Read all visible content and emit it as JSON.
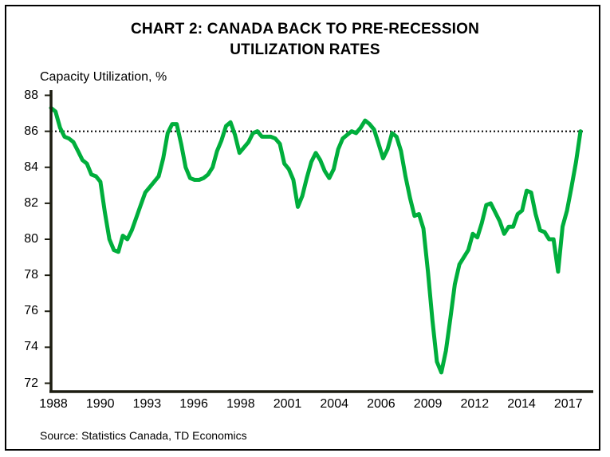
{
  "header": {
    "title_line1": "CHART 2: CANADA BACK TO PRE-RECESSION",
    "title_line2": "UTILIZATION RATES"
  },
  "chart_data": {
    "type": "line",
    "title": "CHART 2: CANADA BACK TO PRE-RECESSION UTILIZATION RATES",
    "ylabel": "Capacity Utilization, %",
    "xlabel": "",
    "source": "Source: Statistics Canada, TD Economics",
    "ylim": [
      72,
      88
    ],
    "yticks": [
      88,
      86,
      84,
      82,
      80,
      78,
      76,
      74,
      72
    ],
    "xtick_labels": [
      "1988",
      "1990",
      "1993",
      "1996",
      "1998",
      "2001",
      "2004",
      "2006",
      "2009",
      "2012",
      "2014",
      "2017"
    ],
    "grid": false,
    "legend": "none",
    "reference_line": {
      "value": 86,
      "style": "dotted",
      "color": "#000000"
    },
    "series": [
      {
        "name": "Capacity Utilization (%)",
        "frequency": "quarterly",
        "start": "1988Q1",
        "end": "2017Q3",
        "color": "#00AE3C",
        "values": [
          87.3,
          87.1,
          86.2,
          85.7,
          85.6,
          85.4,
          84.9,
          84.4,
          84.2,
          83.6,
          83.5,
          83.2,
          81.5,
          80.0,
          79.4,
          79.3,
          80.2,
          80.0,
          80.5,
          81.2,
          81.9,
          82.6,
          82.9,
          83.2,
          83.5,
          84.5,
          85.9,
          86.4,
          86.4,
          85.3,
          84.0,
          83.4,
          83.3,
          83.3,
          83.4,
          83.6,
          84.0,
          84.9,
          85.5,
          86.3,
          86.5,
          85.8,
          84.8,
          85.1,
          85.4,
          85.9,
          86.0,
          85.7,
          85.7,
          85.7,
          85.6,
          85.3,
          84.2,
          83.9,
          83.3,
          81.8,
          82.4,
          83.4,
          84.3,
          84.8,
          84.4,
          83.8,
          83.4,
          83.9,
          85.0,
          85.6,
          85.8,
          86.0,
          85.9,
          86.2,
          86.6,
          86.4,
          86.1,
          85.3,
          84.5,
          85.0,
          85.9,
          85.7,
          84.9,
          83.5,
          82.3,
          81.3,
          81.4,
          80.6,
          78.2,
          75.5,
          73.2,
          72.6,
          73.8,
          75.6,
          77.5,
          78.6,
          79.0,
          79.4,
          80.3,
          80.1,
          80.9,
          81.9,
          82.0,
          81.5,
          81.0,
          80.3,
          80.7,
          80.7,
          81.4,
          81.6,
          82.7,
          82.6,
          81.4,
          80.5,
          80.4,
          80.0,
          80.0,
          78.2,
          80.7,
          81.6,
          82.9,
          84.3,
          86.0
        ]
      }
    ]
  },
  "colors": {
    "line": "#00AE3C",
    "axis": "#1C1C10",
    "reference": "#000000",
    "background": "#FFFFFF",
    "border": "#000000"
  }
}
